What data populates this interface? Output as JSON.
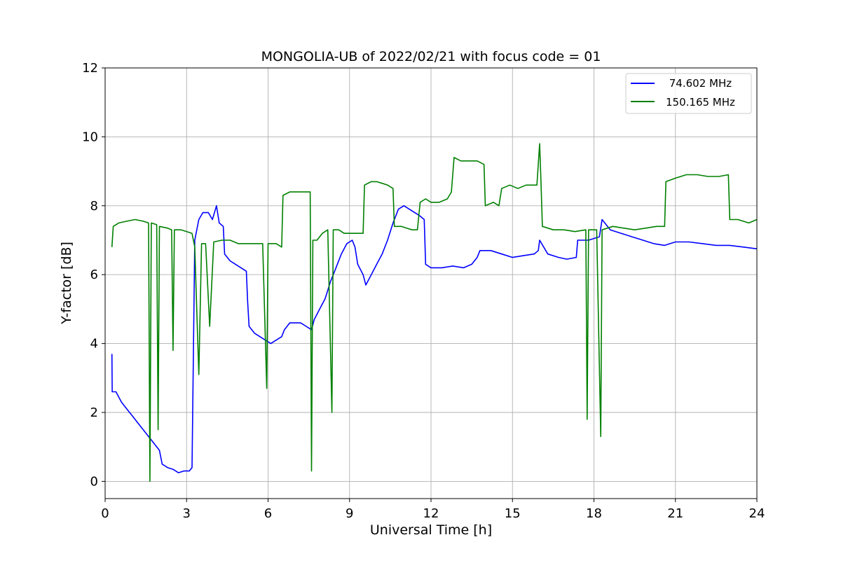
{
  "chart_data": {
    "type": "line",
    "title": "MONGOLIA-UB of 2022/02/21 with focus code = 01",
    "xlabel": "Universal Time [h]",
    "ylabel": "Y-factor [dB]",
    "xlim": [
      0,
      24
    ],
    "ylim": [
      -0.5,
      12
    ],
    "xticks": [
      0,
      3,
      6,
      9,
      12,
      15,
      18,
      21,
      24
    ],
    "yticks": [
      0,
      2,
      4,
      6,
      8,
      10,
      12
    ],
    "grid": true,
    "legend_position": "top-right",
    "series": [
      {
        "name": " 74.602 MHz",
        "color": "#0000ff",
        "points": [
          [
            0.25,
            3.7
          ],
          [
            0.26,
            2.6
          ],
          [
            0.4,
            2.6
          ],
          [
            0.6,
            2.3
          ],
          [
            0.8,
            2.1
          ],
          [
            1.0,
            1.9
          ],
          [
            1.2,
            1.7
          ],
          [
            1.4,
            1.5
          ],
          [
            1.6,
            1.3
          ],
          [
            1.8,
            1.1
          ],
          [
            2.0,
            0.9
          ],
          [
            2.1,
            0.5
          ],
          [
            2.3,
            0.4
          ],
          [
            2.5,
            0.35
          ],
          [
            2.7,
            0.25
          ],
          [
            2.9,
            0.3
          ],
          [
            3.1,
            0.3
          ],
          [
            3.2,
            0.4
          ],
          [
            3.3,
            7.0
          ],
          [
            3.45,
            7.6
          ],
          [
            3.6,
            7.8
          ],
          [
            3.8,
            7.8
          ],
          [
            3.95,
            7.6
          ],
          [
            4.1,
            8.0
          ],
          [
            4.2,
            7.5
          ],
          [
            4.35,
            7.4
          ],
          [
            4.4,
            6.6
          ],
          [
            4.6,
            6.4
          ],
          [
            4.8,
            6.3
          ],
          [
            5.0,
            6.2
          ],
          [
            5.2,
            6.1
          ],
          [
            5.25,
            5.2
          ],
          [
            5.3,
            4.5
          ],
          [
            5.5,
            4.3
          ],
          [
            5.7,
            4.2
          ],
          [
            5.9,
            4.1
          ],
          [
            6.1,
            4.0
          ],
          [
            6.3,
            4.1
          ],
          [
            6.5,
            4.2
          ],
          [
            6.6,
            4.4
          ],
          [
            6.8,
            4.6
          ],
          [
            7.0,
            4.6
          ],
          [
            7.2,
            4.6
          ],
          [
            7.4,
            4.5
          ],
          [
            7.6,
            4.4
          ],
          [
            7.7,
            4.7
          ],
          [
            7.9,
            5.0
          ],
          [
            8.1,
            5.3
          ],
          [
            8.3,
            5.8
          ],
          [
            8.5,
            6.2
          ],
          [
            8.7,
            6.6
          ],
          [
            8.9,
            6.9
          ],
          [
            9.1,
            7.0
          ],
          [
            9.2,
            6.8
          ],
          [
            9.3,
            6.3
          ],
          [
            9.5,
            6.0
          ],
          [
            9.6,
            5.7
          ],
          [
            9.8,
            6.0
          ],
          [
            10.0,
            6.3
          ],
          [
            10.2,
            6.6
          ],
          [
            10.4,
            7.0
          ],
          [
            10.6,
            7.5
          ],
          [
            10.8,
            7.9
          ],
          [
            11.0,
            8.0
          ],
          [
            11.2,
            7.9
          ],
          [
            11.4,
            7.8
          ],
          [
            11.6,
            7.7
          ],
          [
            11.75,
            7.6
          ],
          [
            11.8,
            6.3
          ],
          [
            12.0,
            6.2
          ],
          [
            12.4,
            6.2
          ],
          [
            12.8,
            6.25
          ],
          [
            13.2,
            6.2
          ],
          [
            13.5,
            6.3
          ],
          [
            13.7,
            6.5
          ],
          [
            13.8,
            6.7
          ],
          [
            14.2,
            6.7
          ],
          [
            14.6,
            6.6
          ],
          [
            15.0,
            6.5
          ],
          [
            15.4,
            6.55
          ],
          [
            15.8,
            6.6
          ],
          [
            15.95,
            6.7
          ],
          [
            16.0,
            7.0
          ],
          [
            16.3,
            6.6
          ],
          [
            16.7,
            6.5
          ],
          [
            17.0,
            6.45
          ],
          [
            17.35,
            6.5
          ],
          [
            17.4,
            7.0
          ],
          [
            17.8,
            7.0
          ],
          [
            18.2,
            7.1
          ],
          [
            18.3,
            7.6
          ],
          [
            18.6,
            7.3
          ],
          [
            19.0,
            7.2
          ],
          [
            19.4,
            7.1
          ],
          [
            19.8,
            7.0
          ],
          [
            20.2,
            6.9
          ],
          [
            20.6,
            6.85
          ],
          [
            21.0,
            6.95
          ],
          [
            21.5,
            6.95
          ],
          [
            22.0,
            6.9
          ],
          [
            22.5,
            6.85
          ],
          [
            23.0,
            6.85
          ],
          [
            23.5,
            6.8
          ],
          [
            24.0,
            6.75
          ]
        ]
      },
      {
        "name": "150.165 MHz",
        "color": "#008000",
        "points": [
          [
            0.25,
            6.8
          ],
          [
            0.3,
            7.4
          ],
          [
            0.5,
            7.5
          ],
          [
            0.8,
            7.55
          ],
          [
            1.1,
            7.6
          ],
          [
            1.4,
            7.55
          ],
          [
            1.6,
            7.5
          ],
          [
            1.65,
            0.0
          ],
          [
            1.7,
            7.5
          ],
          [
            1.9,
            7.45
          ],
          [
            1.95,
            1.5
          ],
          [
            2.0,
            7.4
          ],
          [
            2.3,
            7.35
          ],
          [
            2.45,
            7.3
          ],
          [
            2.5,
            3.8
          ],
          [
            2.55,
            7.3
          ],
          [
            2.8,
            7.3
          ],
          [
            3.0,
            7.25
          ],
          [
            3.2,
            7.2
          ],
          [
            3.3,
            6.8
          ],
          [
            3.45,
            3.1
          ],
          [
            3.55,
            6.9
          ],
          [
            3.7,
            6.9
          ],
          [
            3.85,
            4.5
          ],
          [
            4.0,
            6.95
          ],
          [
            4.3,
            7.0
          ],
          [
            4.6,
            7.0
          ],
          [
            4.9,
            6.9
          ],
          [
            5.2,
            6.9
          ],
          [
            5.5,
            6.9
          ],
          [
            5.8,
            6.9
          ],
          [
            5.95,
            2.7
          ],
          [
            6.0,
            6.9
          ],
          [
            6.3,
            6.9
          ],
          [
            6.5,
            6.8
          ],
          [
            6.55,
            8.3
          ],
          [
            6.8,
            8.4
          ],
          [
            7.0,
            8.4
          ],
          [
            7.2,
            8.4
          ],
          [
            7.4,
            8.4
          ],
          [
            7.55,
            8.4
          ],
          [
            7.6,
            0.3
          ],
          [
            7.65,
            7.0
          ],
          [
            7.8,
            7.0
          ],
          [
            8.0,
            7.2
          ],
          [
            8.2,
            7.3
          ],
          [
            8.35,
            2.0
          ],
          [
            8.4,
            7.3
          ],
          [
            8.6,
            7.3
          ],
          [
            8.8,
            7.2
          ],
          [
            9.0,
            7.2
          ],
          [
            9.2,
            7.2
          ],
          [
            9.5,
            7.2
          ],
          [
            9.55,
            8.6
          ],
          [
            9.8,
            8.7
          ],
          [
            10.0,
            8.7
          ],
          [
            10.2,
            8.65
          ],
          [
            10.4,
            8.6
          ],
          [
            10.6,
            8.5
          ],
          [
            10.65,
            7.4
          ],
          [
            10.9,
            7.4
          ],
          [
            11.1,
            7.35
          ],
          [
            11.3,
            7.3
          ],
          [
            11.5,
            7.3
          ],
          [
            11.6,
            8.1
          ],
          [
            11.8,
            8.2
          ],
          [
            12.0,
            8.1
          ],
          [
            12.3,
            8.1
          ],
          [
            12.6,
            8.2
          ],
          [
            12.75,
            8.4
          ],
          [
            12.85,
            9.4
          ],
          [
            13.1,
            9.3
          ],
          [
            13.3,
            9.3
          ],
          [
            13.5,
            9.3
          ],
          [
            13.7,
            9.3
          ],
          [
            13.95,
            9.2
          ],
          [
            14.0,
            8.0
          ],
          [
            14.3,
            8.1
          ],
          [
            14.5,
            8.0
          ],
          [
            14.6,
            8.5
          ],
          [
            14.9,
            8.6
          ],
          [
            15.2,
            8.5
          ],
          [
            15.5,
            8.6
          ],
          [
            15.9,
            8.6
          ],
          [
            16.0,
            9.8
          ],
          [
            16.05,
            8.7
          ],
          [
            16.1,
            7.4
          ],
          [
            16.5,
            7.3
          ],
          [
            16.9,
            7.3
          ],
          [
            17.3,
            7.25
          ],
          [
            17.7,
            7.3
          ],
          [
            17.75,
            1.8
          ],
          [
            17.8,
            7.3
          ],
          [
            18.1,
            7.3
          ],
          [
            18.25,
            1.3
          ],
          [
            18.3,
            7.3
          ],
          [
            18.7,
            7.4
          ],
          [
            19.1,
            7.35
          ],
          [
            19.5,
            7.3
          ],
          [
            19.9,
            7.35
          ],
          [
            20.3,
            7.4
          ],
          [
            20.6,
            7.4
          ],
          [
            20.65,
            8.7
          ],
          [
            21.0,
            8.8
          ],
          [
            21.4,
            8.9
          ],
          [
            21.8,
            8.9
          ],
          [
            22.2,
            8.85
          ],
          [
            22.6,
            8.85
          ],
          [
            22.95,
            8.9
          ],
          [
            23.0,
            7.6
          ],
          [
            23.3,
            7.6
          ],
          [
            23.7,
            7.5
          ],
          [
            24.0,
            7.6
          ]
        ]
      }
    ]
  }
}
